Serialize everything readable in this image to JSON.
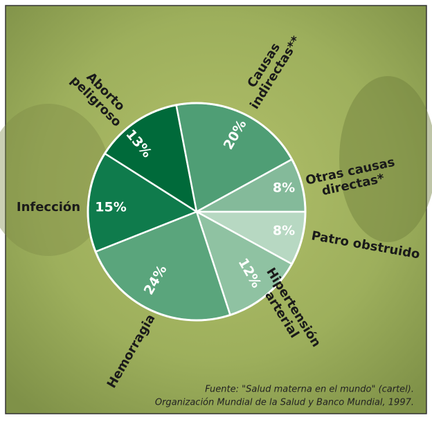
{
  "chart_data": {
    "type": "pie",
    "categories": [
      "Patro obstruido",
      "Hipertensión\narterial",
      "Hemorragia",
      "Infección",
      "Aborto\npeligroso",
      "Causas\nindirectas**",
      "Otras causas\ndirectas*"
    ],
    "values": [
      8,
      12,
      24,
      15,
      13,
      20,
      8
    ],
    "value_labels": [
      "8%",
      "12%",
      "24%",
      "15%",
      "13%",
      "20%",
      "8%"
    ],
    "colors": [
      "#b7d8c2",
      "#8fc2a2",
      "#5aa57c",
      "#0f7b4c",
      "#006a3a",
      "#4f9e75",
      "#84ba9a"
    ],
    "source": [
      "Fuente: \"Salud materna en el mundo\" (cartel).",
      "Organización Mundial de la Salud y Banco Mundial, 1997."
    ]
  }
}
